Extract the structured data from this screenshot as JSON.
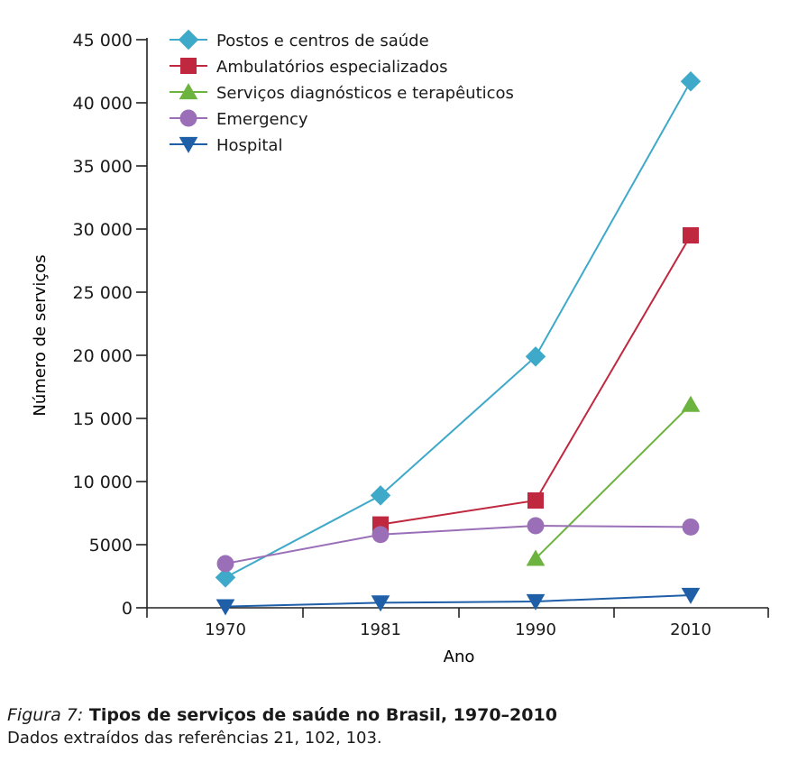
{
  "chart_data": {
    "type": "line",
    "x": [
      "1970",
      "1981",
      "1990",
      "2010"
    ],
    "ylabel": "Número de serviços",
    "xlabel": "Ano",
    "ylim": [
      0,
      45000
    ],
    "yticks": [
      0,
      5000,
      10000,
      15000,
      20000,
      25000,
      30000,
      35000,
      40000,
      45000
    ],
    "ytick_labels": [
      "0",
      "5000",
      "10 000",
      "15 000",
      "20 000",
      "25 000",
      "30 000",
      "35 000",
      "40 000",
      "45 000"
    ],
    "grid": false,
    "legend_position": "top-left",
    "series": [
      {
        "name": "Postos e centros de saúde",
        "color": "#3fa9c9",
        "marker": "diamond",
        "values": [
          2400,
          8900,
          19900,
          41700
        ]
      },
      {
        "name": "Ambulatórios especializados",
        "color": "#c0283f",
        "marker": "square",
        "values": [
          null,
          6600,
          8500,
          29500
        ]
      },
      {
        "name": "Serviços diagnósticos e terapêuticos",
        "color": "#6db33f",
        "marker": "triangle-up",
        "values": [
          null,
          null,
          3900,
          16100
        ]
      },
      {
        "name": "Emergency",
        "color": "#9b6fb7",
        "marker": "circle",
        "values": [
          3500,
          5800,
          6500,
          6400
        ]
      },
      {
        "name": "Hospital",
        "color": "#1f5fa8",
        "marker": "triangle-down",
        "values": [
          100,
          400,
          500,
          1000
        ]
      }
    ]
  },
  "caption": {
    "figure_label": "Figura 7:",
    "title": "Tipos de serviços de saúde no Brasil, 1970–2010",
    "source": "Dados extraídos das referências 21, 102, 103."
  }
}
